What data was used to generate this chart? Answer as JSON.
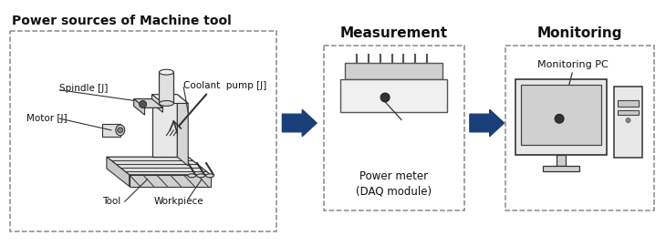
{
  "title": "Power sources of Machine tool",
  "box2_label": "Measurement",
  "box3_label": "Monitoring",
  "label_measurement": "Power meter\n(DAQ module)",
  "label_monitoring_pc": "Monitoring PC",
  "labels_coolant": "Coolant  pump [J]",
  "labels_spindle": "Spindle [J]",
  "labels_motor": "Motor [J]",
  "labels_tool": "Tool",
  "labels_workpiece": "Workpiece",
  "arrow_color": "#1a3f7a",
  "text_color": "#111111",
  "dash_color": "#888888",
  "line_color": "#333333"
}
